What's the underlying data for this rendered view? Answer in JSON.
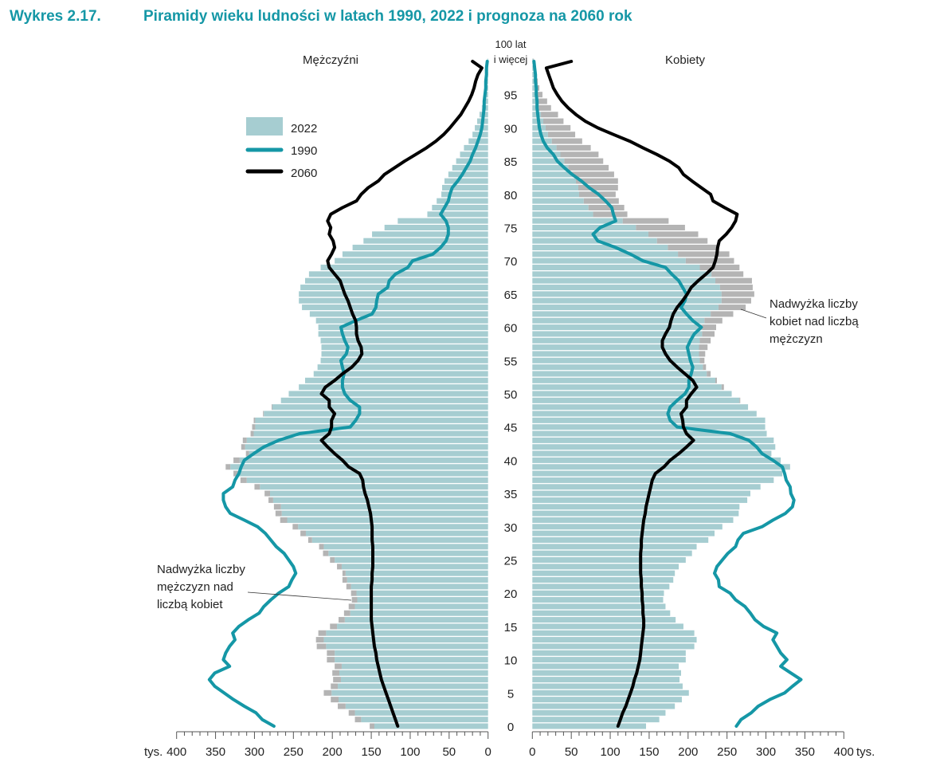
{
  "figure_number": "Wykres 2.17.",
  "title": "Piramidy wieku ludności w latach 1990, 2022 i prognoza na 2060 rok",
  "colors": {
    "bars_2022": "#a6cdd1",
    "excess": "#b4b4b4",
    "line_1990": "#1597a6",
    "line_2060": "#000000",
    "title": "#1597a6"
  },
  "chart_data": {
    "type": "population-pyramid",
    "title": "Piramidy wieku ludności w latach 1990, 2022 i prognoza na 2060 rok",
    "left_label": "Mężczyźni",
    "right_label": "Kobiety",
    "unit": "tys.",
    "x_range": [
      0,
      400
    ],
    "x_ticks_left": [
      "400",
      "350",
      "300",
      "250",
      "200",
      "150",
      "100",
      "50",
      "0"
    ],
    "x_ticks_right": [
      "0",
      "50",
      "100",
      "150",
      "200",
      "250",
      "300",
      "350",
      "400"
    ],
    "age_ticks": [
      "0",
      "5",
      "10",
      "15",
      "20",
      "25",
      "30",
      "35",
      "40",
      "45",
      "50",
      "55",
      "60",
      "65",
      "70",
      "75",
      "80",
      "85",
      "90",
      "95"
    ],
    "top_age_label": [
      "100 lat",
      "i więcej"
    ],
    "legend": [
      {
        "name": "2022",
        "kind": "bar"
      },
      {
        "name": "1990",
        "kind": "line"
      },
      {
        "name": "2060",
        "kind": "line"
      }
    ],
    "annotations": {
      "male_excess": [
        "Nadwyżka liczby",
        "mężczyzn nad",
        "liczbą kobiet"
      ],
      "female_excess": [
        "Nadwyżka liczby",
        "kobiet nad liczbą",
        "mężczyzn"
      ]
    },
    "ages": "0 to 100 (100 = 100 lat i więcej)",
    "series": [
      {
        "name": "2022",
        "sex": "male",
        "type": "bar",
        "values": [
          152,
          171,
          179,
          193,
          202,
          211,
          202,
          199,
          200,
          197,
          207,
          207,
          220,
          221,
          218,
          203,
          192,
          185,
          179,
          175,
          176,
          182,
          187,
          187,
          194,
          203,
          212,
          217,
          231,
          241,
          251,
          267,
          273,
          275,
          282,
          287,
          300,
          318,
          327,
          337,
          327,
          311,
          317,
          315,
          305,
          303,
          301,
          289,
          278,
          266,
          256,
          243,
          235,
          224,
          219,
          215,
          214,
          214,
          215,
          218,
          218,
          221,
          229,
          239,
          243,
          243,
          241,
          235,
          230,
          215,
          197,
          187,
          174,
          160,
          149,
          133,
          116,
          78,
          72,
          66,
          60,
          59,
          56,
          51,
          46,
          41,
          36,
          31,
          25,
          20,
          17,
          14,
          11,
          8,
          6,
          5,
          3,
          2,
          2,
          1,
          1
        ]
      },
      {
        "name": "2022",
        "sex": "female",
        "type": "bar",
        "values": [
          146,
          163,
          171,
          183,
          192,
          201,
          193,
          189,
          191,
          188,
          197,
          197,
          208,
          211,
          208,
          194,
          184,
          177,
          171,
          168,
          169,
          176,
          181,
          183,
          188,
          197,
          205,
          211,
          226,
          234,
          244,
          258,
          265,
          266,
          276,
          280,
          293,
          310,
          321,
          331,
          319,
          307,
          312,
          310,
          301,
          299,
          299,
          288,
          277,
          267,
          256,
          246,
          237,
          229,
          223,
          221,
          222,
          225,
          229,
          234,
          236,
          244,
          258,
          274,
          281,
          285,
          283,
          282,
          271,
          266,
          259,
          253,
          237,
          225,
          213,
          196,
          175,
          122,
          118,
          111,
          107,
          110,
          110,
          105,
          98,
          91,
          85,
          75,
          64,
          55,
          49,
          40,
          33,
          24,
          19,
          13,
          9,
          7,
          5,
          3,
          2
        ]
      },
      {
        "name": "1990",
        "sex": "male",
        "type": "line",
        "values": [
          275,
          290,
          298,
          313,
          327,
          339,
          351,
          358,
          351,
          332,
          340,
          337,
          332,
          325,
          328,
          320,
          308,
          294,
          288,
          279,
          269,
          256,
          252,
          247,
          250,
          256,
          262,
          272,
          279,
          286,
          296,
          313,
          331,
          337,
          340,
          340,
          328,
          325,
          320,
          317,
          313,
          301,
          288,
          269,
          242,
          177,
          170,
          165,
          165,
          177,
          184,
          187,
          187,
          185,
          187,
          189,
          182,
          180,
          184,
          187,
          189,
          170,
          149,
          144,
          143,
          141,
          129,
          127,
          119,
          103,
          97,
          71,
          61,
          54,
          51,
          51,
          54,
          61,
          56,
          51,
          49,
          46,
          39,
          33,
          28,
          23,
          20,
          16,
          13,
          10,
          8,
          7,
          6,
          5,
          5,
          4,
          3,
          3,
          2,
          2,
          1
        ]
      },
      {
        "name": "1990",
        "sex": "female",
        "type": "line",
        "values": [
          262,
          268,
          281,
          290,
          305,
          324,
          334,
          345,
          332,
          319,
          327,
          319,
          314,
          309,
          314,
          297,
          286,
          280,
          273,
          261,
          254,
          240,
          239,
          234,
          237,
          244,
          251,
          261,
          264,
          271,
          295,
          309,
          325,
          334,
          336,
          332,
          331,
          326,
          324,
          321,
          309,
          295,
          288,
          278,
          254,
          186,
          177,
          174,
          177,
          186,
          196,
          201,
          201,
          204,
          206,
          203,
          201,
          199,
          203,
          208,
          217,
          206,
          198,
          191,
          196,
          198,
          193,
          188,
          179,
          171,
          142,
          126,
          107,
          84,
          78,
          87,
          107,
          104,
          102,
          94,
          85,
          73,
          63,
          51,
          41,
          32,
          27,
          19,
          14,
          11,
          9,
          8,
          7,
          6,
          6,
          5,
          5,
          4,
          4,
          3,
          2
        ]
      },
      {
        "name": "2060",
        "sex": "male",
        "type": "line",
        "values": [
          116,
          119,
          122,
          125,
          128,
          131,
          134,
          137,
          139,
          141,
          143,
          144,
          146,
          147,
          148,
          149,
          150,
          150,
          150,
          150,
          150,
          150,
          149,
          149,
          148,
          148,
          148,
          148,
          149,
          149,
          149,
          150,
          151,
          153,
          155,
          158,
          160,
          161,
          165,
          179,
          187,
          197,
          206,
          214,
          204,
          201,
          201,
          197,
          204,
          204,
          214,
          209,
          197,
          187,
          175,
          167,
          162,
          163,
          167,
          169,
          169,
          170,
          174,
          177,
          180,
          184,
          187,
          190,
          197,
          204,
          206,
          201,
          197,
          199,
          204,
          202,
          206,
          202,
          187,
          169,
          163,
          154,
          141,
          133,
          120,
          107,
          93,
          79,
          67,
          57,
          49,
          42,
          35,
          30,
          25,
          21,
          18,
          16,
          13,
          8,
          20
        ]
      },
      {
        "name": "2060",
        "sex": "female",
        "type": "line",
        "values": [
          110,
          113,
          116,
          120,
          123,
          126,
          129,
          131,
          134,
          136,
          138,
          139,
          140,
          141,
          142,
          143,
          143,
          142,
          142,
          141,
          141,
          140,
          140,
          139,
          139,
          139,
          139,
          140,
          140,
          141,
          142,
          143,
          145,
          146,
          148,
          150,
          152,
          154,
          158,
          169,
          177,
          188,
          198,
          207,
          198,
          194,
          193,
          191,
          198,
          198,
          204,
          211,
          206,
          196,
          186,
          177,
          171,
          167,
          167,
          171,
          176,
          178,
          181,
          186,
          193,
          199,
          204,
          213,
          223,
          232,
          235,
          237,
          238,
          240,
          249,
          256,
          261,
          263,
          247,
          232,
          229,
          217,
          205,
          194,
          188,
          176,
          160,
          142,
          125,
          104,
          84,
          68,
          56,
          46,
          38,
          32,
          27,
          24,
          21,
          18,
          50
        ]
      }
    ]
  }
}
